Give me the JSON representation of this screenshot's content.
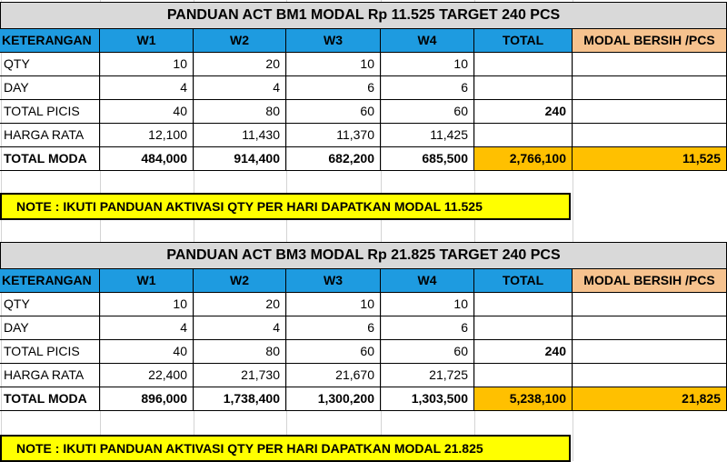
{
  "headers": [
    "KETERANGAN",
    "W1",
    "W2",
    "W3",
    "W4",
    "TOTAL",
    "MODAL BERSIH /PCS"
  ],
  "table1": {
    "title": "PANDUAN ACT BM1 MODAL Rp 11.525 TARGET 240 PCS",
    "rows": [
      {
        "label": "QTY",
        "w1": "10",
        "w2": "20",
        "w3": "10",
        "w4": "10",
        "total": "",
        "modal": ""
      },
      {
        "label": "DAY",
        "w1": "4",
        "w2": "4",
        "w3": "6",
        "w4": "6",
        "total": "",
        "modal": ""
      },
      {
        "label": "TOTAL PICIS",
        "w1": "40",
        "w2": "80",
        "w3": "60",
        "w4": "60",
        "total": "240",
        "modal": ""
      },
      {
        "label": "HARGA RATA",
        "w1": "12,100",
        "w2": "11,430",
        "w3": "11,370",
        "w4": "11,425",
        "total": "",
        "modal": ""
      },
      {
        "label": "TOTAL MODA",
        "w1": "484,000",
        "w2": "914,400",
        "w3": "682,200",
        "w4": "685,500",
        "total": "2,766,100",
        "modal": "11,525"
      }
    ],
    "note": "NOTE : IKUTI PANDUAN AKTIVASI QTY PER HARI DAPATKAN MODAL 11.525"
  },
  "table2": {
    "title": "PANDUAN ACT BM3 MODAL Rp 21.825 TARGET 240 PCS",
    "rows": [
      {
        "label": "QTY",
        "w1": "10",
        "w2": "20",
        "w3": "10",
        "w4": "10",
        "total": "",
        "modal": ""
      },
      {
        "label": "DAY",
        "w1": "4",
        "w2": "4",
        "w3": "6",
        "w4": "6",
        "total": "",
        "modal": ""
      },
      {
        "label": "TOTAL PICIS",
        "w1": "40",
        "w2": "80",
        "w3": "60",
        "w4": "60",
        "total": "240",
        "modal": ""
      },
      {
        "label": "HARGA RATA",
        "w1": "22,400",
        "w2": "21,730",
        "w3": "21,670",
        "w4": "21,725",
        "total": "",
        "modal": ""
      },
      {
        "label": "TOTAL MODA",
        "w1": "896,000",
        "w2": "1,738,400",
        "w3": "1,300,200",
        "w4": "1,303,500",
        "total": "5,238,100",
        "modal": "21,825"
      }
    ],
    "note": "NOTE : IKUTI PANDUAN AKTIVASI QTY PER HARI DAPATKAN MODAL 21.825"
  },
  "colors": {
    "header_blue": "#1e9be0",
    "modal_header": "#f6c28e",
    "total_orange": "#ffc000",
    "note_yellow": "#ffff00",
    "title_gray": "#d9d9d9"
  }
}
